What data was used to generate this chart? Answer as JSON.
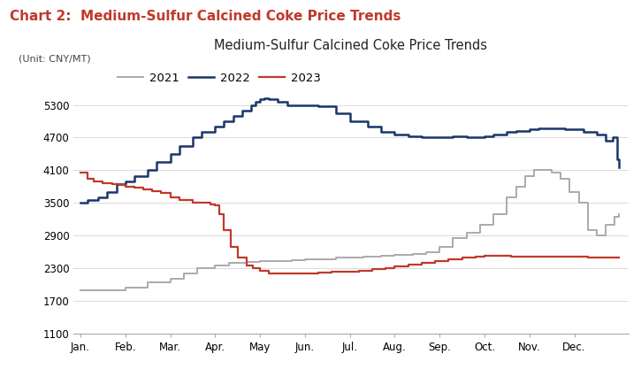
{
  "title_chart": "Chart 2:  Medium-Sulfur Calcined Coke Price Trends",
  "title_chart_color": "#c0392b",
  "title_inner": "Medium-Sulfur Calcined Coke Price Trends",
  "unit_label": "(Unit: CNY/MT)",
  "xlabel_ticks": [
    "Jan.",
    "Feb.",
    "Mar.",
    "Apr.",
    "May",
    "Jun.",
    "Jul.",
    "Aug.",
    "Sep.",
    "Oct.",
    "Nov.",
    "Dec."
  ],
  "ylim": [
    1100,
    5600
  ],
  "yticks": [
    1100,
    1700,
    2300,
    2900,
    3500,
    4100,
    4700,
    5300
  ],
  "bg_color": "#ffffff",
  "grid_color": "#cccccc",
  "series_2021": {
    "label": "2021",
    "color": "#aaaaaa",
    "x": [
      0,
      0.5,
      1.0,
      1.5,
      2.0,
      2.3,
      2.6,
      3.0,
      3.3,
      3.7,
      4.0,
      4.3,
      4.7,
      5.0,
      5.4,
      5.7,
      6.0,
      6.3,
      6.7,
      7.0,
      7.4,
      7.7,
      8.0,
      8.3,
      8.6,
      8.9,
      9.2,
      9.5,
      9.7,
      9.9,
      10.1,
      10.3,
      10.5,
      10.7,
      10.9,
      11.1,
      11.3,
      11.5,
      11.7,
      11.9,
      12.0
    ],
    "y": [
      1900,
      1900,
      1950,
      2050,
      2100,
      2200,
      2300,
      2350,
      2400,
      2420,
      2430,
      2440,
      2450,
      2460,
      2470,
      2490,
      2500,
      2510,
      2530,
      2540,
      2560,
      2600,
      2700,
      2850,
      2950,
      3100,
      3300,
      3600,
      3800,
      4000,
      4100,
      4100,
      4050,
      3950,
      3700,
      3500,
      3000,
      2900,
      3100,
      3250,
      3300
    ]
  },
  "series_2022": {
    "label": "2022",
    "color": "#1a3668",
    "x": [
      0,
      0.15,
      0.4,
      0.6,
      0.8,
      1.0,
      1.2,
      1.5,
      1.7,
      2.0,
      2.2,
      2.5,
      2.7,
      3.0,
      3.2,
      3.4,
      3.6,
      3.8,
      3.9,
      4.0,
      4.1,
      4.2,
      4.4,
      4.6,
      5.0,
      5.3,
      5.7,
      6.0,
      6.4,
      6.7,
      7.0,
      7.3,
      7.6,
      8.0,
      8.3,
      8.6,
      9.0,
      9.2,
      9.5,
      9.7,
      10.0,
      10.2,
      10.5,
      10.8,
      11.0,
      11.2,
      11.5,
      11.7,
      11.85,
      11.95,
      12.0
    ],
    "y": [
      3500,
      3550,
      3600,
      3700,
      3850,
      3900,
      4000,
      4100,
      4250,
      4400,
      4550,
      4700,
      4800,
      4900,
      5000,
      5100,
      5200,
      5300,
      5350,
      5400,
      5420,
      5400,
      5350,
      5300,
      5300,
      5280,
      5150,
      5000,
      4900,
      4800,
      4750,
      4720,
      4710,
      4700,
      4720,
      4700,
      4720,
      4760,
      4800,
      4820,
      4850,
      4870,
      4870,
      4860,
      4850,
      4800,
      4750,
      4650,
      4700,
      4300,
      4150
    ]
  },
  "series_2023": {
    "label": "2023",
    "color": "#c0392b",
    "x": [
      0,
      0.15,
      0.3,
      0.5,
      0.7,
      0.9,
      1.0,
      1.2,
      1.4,
      1.6,
      1.8,
      2.0,
      2.2,
      2.5,
      2.7,
      2.9,
      3.0,
      3.1,
      3.2,
      3.35,
      3.5,
      3.7,
      3.85,
      4.0,
      4.2,
      4.5,
      4.8,
      5.0,
      5.3,
      5.6,
      5.9,
      6.2,
      6.5,
      6.8,
      7.0,
      7.3,
      7.6,
      7.9,
      8.2,
      8.5,
      8.8,
      9.0,
      9.3,
      9.6,
      9.9,
      10.2,
      10.5,
      11.0,
      11.3,
      11.6,
      11.9,
      12.0
    ],
    "y": [
      4050,
      3950,
      3900,
      3870,
      3850,
      3830,
      3800,
      3780,
      3750,
      3720,
      3680,
      3600,
      3550,
      3500,
      3500,
      3480,
      3450,
      3300,
      3000,
      2700,
      2500,
      2350,
      2300,
      2250,
      2210,
      2200,
      2200,
      2200,
      2220,
      2230,
      2230,
      2250,
      2280,
      2310,
      2330,
      2370,
      2400,
      2430,
      2460,
      2490,
      2510,
      2530,
      2530,
      2520,
      2510,
      2510,
      2510,
      2510,
      2500,
      2500,
      2490,
      2490
    ]
  }
}
